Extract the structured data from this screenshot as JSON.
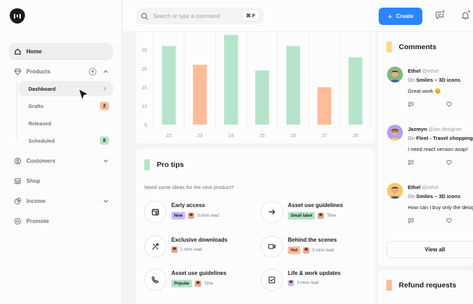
{
  "sidebar": {
    "items": [
      {
        "label": "Home",
        "icon": "home-icon"
      },
      {
        "label": "Products",
        "icon": "diamond-icon"
      },
      {
        "label": "Customers",
        "icon": "user-icon"
      },
      {
        "label": "Shop",
        "icon": "store-icon"
      },
      {
        "label": "Income",
        "icon": "pie-chart-icon"
      },
      {
        "label": "Promote",
        "icon": "promote-icon"
      }
    ],
    "products_sub": [
      {
        "label": "Dashboard"
      },
      {
        "label": "Drafts",
        "badge": "2",
        "badge_color": "#ffbc99"
      },
      {
        "label": "Released"
      },
      {
        "label": "Scheduled",
        "badge": "8",
        "badge_color": "#b5e4ca"
      }
    ]
  },
  "topbar": {
    "search_placeholder": "Search or type a command",
    "shortcut": "⌘ F",
    "create_label": "Create"
  },
  "colors": {
    "accent": "#2a85ff",
    "green": "#b5e4ca",
    "orange": "#ffbc99",
    "purple": "#cabdff",
    "notification": "#ff6a55"
  },
  "chart_data": {
    "type": "bar",
    "categories": [
      "22",
      "23",
      "24",
      "25",
      "26",
      "27",
      "28"
    ],
    "values": [
      26,
      21,
      29,
      19.5,
      26,
      15,
      23
    ],
    "bar_colors": [
      "#b5e4ca",
      "#ffbc99",
      "#b5e4ca",
      "#b5e4ca",
      "#b5e4ca",
      "#ffbc99",
      "#b5e4ca"
    ],
    "yticks": [
      "5",
      "10",
      "15",
      "20",
      "25"
    ],
    "ylim": [
      5,
      30
    ]
  },
  "pro_tips": {
    "title": "Pro tips",
    "subtitle": "Need some ideas for the next product?",
    "items": [
      {
        "title": "Early access",
        "tag": "New",
        "tag_color": "#cabdff",
        "meta": "3 mins read",
        "icon": "schedule-icon"
      },
      {
        "title": "Asset use guidelines",
        "tag": "Small label",
        "tag_color": "#b5e4ca",
        "meta": "Time",
        "icon": "arrow-right-icon"
      },
      {
        "title": "Exclusive downloads",
        "tag": "",
        "tag_color": "",
        "meta": "2 mins read",
        "icon": "design-tools-icon"
      },
      {
        "title": "Behind the scenes",
        "tag": "Hot",
        "tag_color": "#ffbc99",
        "meta": "3 mins read",
        "icon": "video-icon"
      },
      {
        "title": "Asset use guidelines",
        "tag": "Popular",
        "tag_color": "#b5e4ca",
        "meta": "Time",
        "icon": "phone-icon"
      },
      {
        "title": "Life & work updates",
        "tag": "",
        "tag_color": "",
        "meta": "3 mins read",
        "icon": "checklist-icon"
      }
    ]
  },
  "comments": {
    "title": "Comments",
    "items": [
      {
        "name": "Ethel",
        "handle": "@ethel",
        "on_prefix": "On",
        "product": "Smiles – 3D icons",
        "text": "Great work 😊",
        "avatar_bg": "#7fba7a"
      },
      {
        "name": "Jazmyn",
        "handle": "@jaz.designer",
        "on_prefix": "On",
        "product": "Fleet - Travel shopping",
        "text": "I need react version asap!",
        "avatar_bg": "#b69df0"
      },
      {
        "name": "Ethel",
        "handle": "@ethel",
        "on_prefix": "On",
        "product": "Smiles – 3D icons",
        "text": "How can I buy only the design",
        "avatar_bg": "#f5c86a"
      }
    ],
    "view_all": "View all"
  },
  "refund": {
    "title": "Refund requests"
  }
}
